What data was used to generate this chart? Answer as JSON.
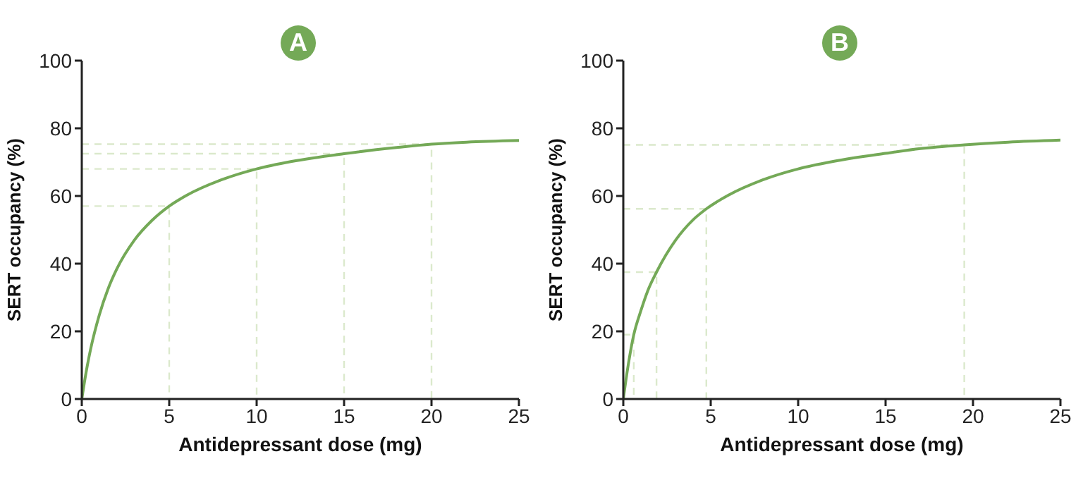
{
  "chart_data": [
    {
      "type": "line",
      "title": "A",
      "xlabel": "Antidepressant dose (mg)",
      "ylabel": "SERT occupancy (%)",
      "xlim": [
        0,
        25
      ],
      "xticks": [
        0,
        5,
        10,
        15,
        20,
        25
      ],
      "ylim": [
        0,
        100
      ],
      "yticks": [
        0,
        20,
        40,
        60,
        80,
        100
      ],
      "grid": false,
      "marker": "none",
      "series": [
        {
          "color": "#74a957",
          "line_style": "solid",
          "x": [
            0,
            0.25,
            0.5,
            1,
            1.5,
            2,
            3,
            4,
            5,
            6,
            8,
            10,
            12,
            15,
            18,
            20,
            22,
            25
          ],
          "values": [
            0,
            8,
            14.6,
            24.8,
            32.5,
            38.4,
            46.9,
            52.7,
            57,
            60.2,
            64.8,
            68,
            70.2,
            72.5,
            74.3,
            75.3,
            75.9,
            76.4
          ]
        },
        {
          "color": "#dbe9cc",
          "line_style": "dashed",
          "x": [
            0,
            5,
            5
          ],
          "values": [
            57,
            57,
            0
          ]
        },
        {
          "color": "#dbe9cc",
          "line_style": "dashed",
          "x": [
            0,
            10,
            10
          ],
          "values": [
            68,
            68,
            0
          ]
        },
        {
          "color": "#dbe9cc",
          "line_style": "dashed",
          "x": [
            0,
            15,
            15
          ],
          "values": [
            72.5,
            72.5,
            0
          ]
        },
        {
          "color": "#dbe9cc",
          "line_style": "dashed",
          "x": [
            0,
            20,
            20
          ],
          "values": [
            75.3,
            75.3,
            0
          ]
        }
      ]
    },
    {
      "type": "line",
      "title": "B",
      "xlabel": "Antidepressant dose (mg)",
      "ylabel": "SERT occupancy (%)",
      "xlim": [
        0,
        25
      ],
      "xticks": [
        0,
        5,
        10,
        15,
        20,
        25
      ],
      "ylim": [
        0,
        100
      ],
      "yticks": [
        0,
        20,
        40,
        60,
        80,
        100
      ],
      "grid": false,
      "marker": "none",
      "series": [
        {
          "color": "#74a957",
          "line_style": "solid",
          "x": [
            0,
            0.25,
            0.6,
            1,
            1.4,
            1.9,
            3,
            4,
            4.75,
            6,
            8,
            10,
            12,
            15,
            17,
            19.5,
            22,
            25
          ],
          "values": [
            0,
            9,
            19,
            26,
            32,
            37.5,
            47,
            53,
            56.2,
            60.2,
            64.8,
            68,
            70.2,
            72.6,
            74,
            75.1,
            75.9,
            76.5
          ]
        },
        {
          "color": "#dbe9cc",
          "line_style": "dashed",
          "x": [
            0,
            0.6,
            0.6
          ],
          "values": [
            19,
            19,
            0
          ]
        },
        {
          "color": "#dbe9cc",
          "line_style": "dashed",
          "x": [
            0,
            1.9,
            1.9
          ],
          "values": [
            37.5,
            37.5,
            0
          ]
        },
        {
          "color": "#dbe9cc",
          "line_style": "dashed",
          "x": [
            0,
            4.75,
            4.75
          ],
          "values": [
            56.2,
            56.2,
            0
          ]
        },
        {
          "color": "#dbe9cc",
          "line_style": "dashed",
          "x": [
            0,
            19.5,
            19.5
          ],
          "values": [
            75.1,
            75.1,
            0
          ]
        }
      ]
    }
  ]
}
